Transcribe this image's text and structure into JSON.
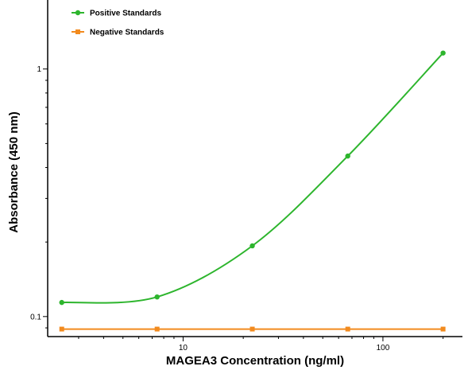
{
  "chart_data": {
    "type": "line",
    "title": "",
    "xlabel": "MAGEA3 Concentration (ng/ml)",
    "ylabel": "Absorbance (450 nm)",
    "xscale": "log",
    "yscale": "log",
    "xlim": [
      2.1,
      250
    ],
    "ylim": [
      0.083,
      1.9
    ],
    "xticks": [
      10,
      100
    ],
    "xtick_labels": [
      "10",
      "100"
    ],
    "yticks": [
      0.1,
      1
    ],
    "ytick_labels": [
      "0.1",
      "1"
    ],
    "grid": false,
    "legend_position": "top-left",
    "series": [
      {
        "name": "Positive Standards",
        "color": "#2db52d",
        "marker": "circle",
        "x": [
          2.47,
          7.41,
          22.2,
          66.7,
          200
        ],
        "y": [
          0.114,
          0.12,
          0.193,
          0.445,
          1.16
        ],
        "fit_curve": true
      },
      {
        "name": "Negative Standards",
        "color": "#f28a1e",
        "marker": "square",
        "x": [
          2.47,
          7.41,
          22.2,
          66.7,
          200
        ],
        "y": [
          0.089,
          0.089,
          0.089,
          0.089,
          0.089
        ],
        "fit_curve": false
      }
    ]
  }
}
